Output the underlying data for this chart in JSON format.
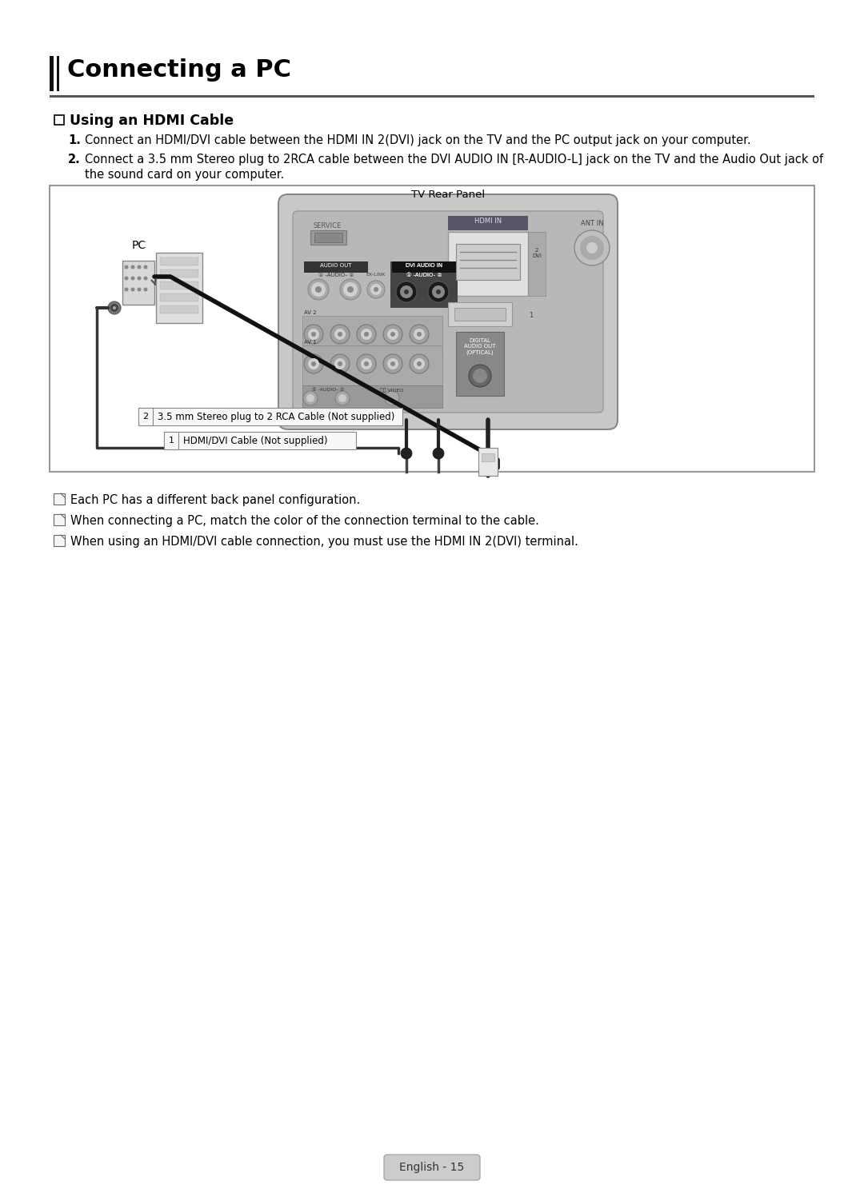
{
  "title": "Connecting a PC",
  "section_title": "Using an HDMI Cable",
  "step1": "Connect an HDMI/DVI cable between the HDMI IN 2(DVI) jack on the TV and the PC output jack on your computer.",
  "step2_line1": "Connect a 3.5 mm Stereo plug to 2RCA cable between the DVI AUDIO IN [R-AUDIO-L] jack on the TV and the Audio Out jack of",
  "step2_line2": "the sound card on your computer.",
  "note1": "Each PC has a different back panel configuration.",
  "note2": "When connecting a PC, match the color of the connection terminal to the cable.",
  "note3": "When using an HDMI/DVI cable connection, you must use the HDMI IN 2(DVI) terminal.",
  "label1": "HDMI/DVI Cable (Not supplied)",
  "label2": "3.5 mm Stereo plug to 2 RCA Cable (Not supplied)",
  "tv_label": "TV Rear Panel",
  "pc_label": "PC",
  "footer": "English - 15",
  "bg_color": "#ffffff",
  "text_color": "#000000",
  "title_bar_color": "#111111",
  "hr_color": "#555555",
  "diagram_border": "#888888",
  "tv_bg": "#c8c8c8",
  "tv_inner_bg": "#b0b0b0",
  "cable_dark": "#111111",
  "cable_mid": "#888888",
  "note_icon_color": "#666666",
  "footer_bg": "#cccccc",
  "footer_text": "#333333",
  "label_border": "#888888"
}
